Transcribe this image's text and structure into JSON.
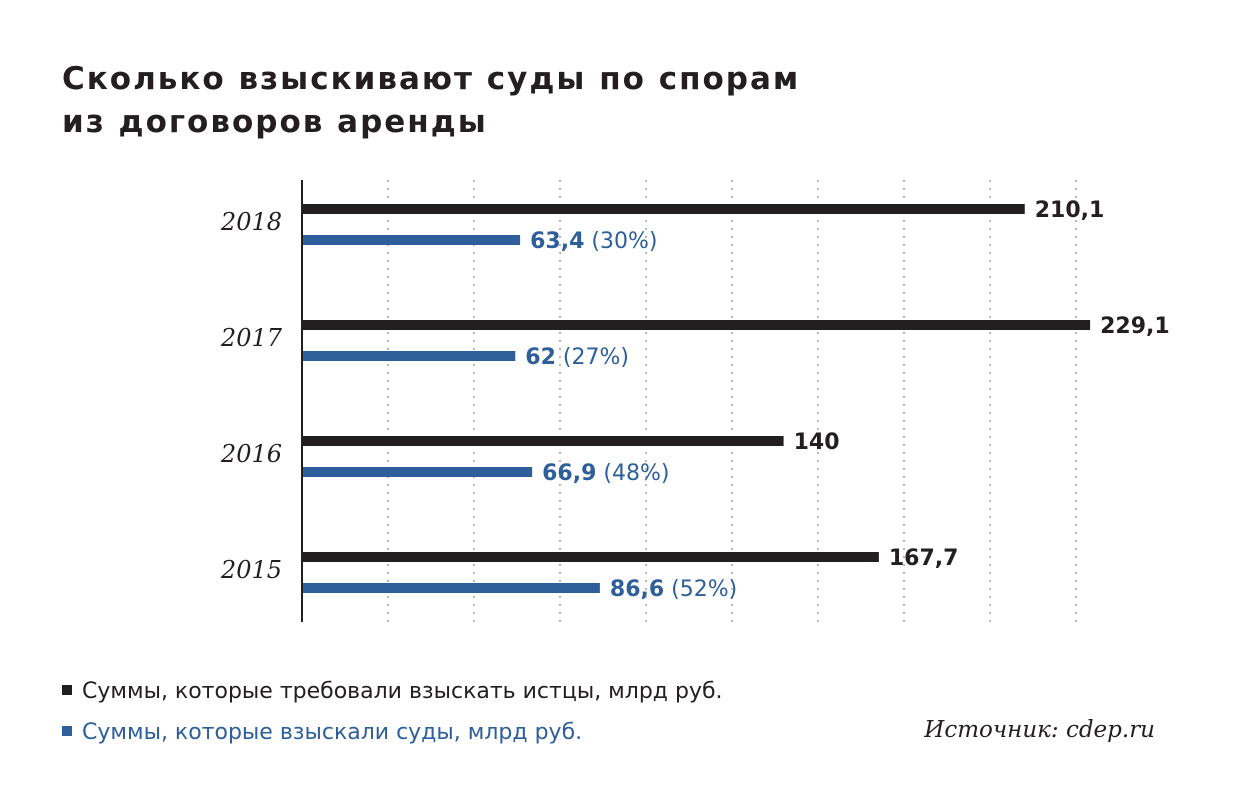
{
  "title": {
    "line1": "Сколько взыскивают суды по спорам",
    "line2": "из договоров аренды"
  },
  "colors": {
    "demanded": "#231f20",
    "awarded": "#2e5f9a",
    "grid": "#b8b8b8",
    "axis": "#231f20"
  },
  "chart_data": {
    "type": "bar",
    "orientation": "horizontal",
    "categories": [
      "2018",
      "2017",
      "2016",
      "2015"
    ],
    "series": [
      {
        "name": "Суммы, которые требовали взыскать истцы, млрд руб.",
        "values": [
          210.1,
          229.1,
          140,
          167.7
        ],
        "labels": [
          "210,1",
          "229,1",
          "140",
          "167,7"
        ]
      },
      {
        "name": "Суммы, которые взыскали суды, млрд руб.",
        "values": [
          63.4,
          62,
          66.9,
          86.6
        ],
        "labels": [
          "63,4",
          "62",
          "66,9",
          "86,6"
        ],
        "shares": [
          "(30%)",
          "(27%)",
          "(48%)",
          "(52%)"
        ]
      }
    ],
    "xlim": [
      0,
      230
    ],
    "grid": true,
    "legend": "bottom-left"
  },
  "source": "Источник: cdep.ru"
}
